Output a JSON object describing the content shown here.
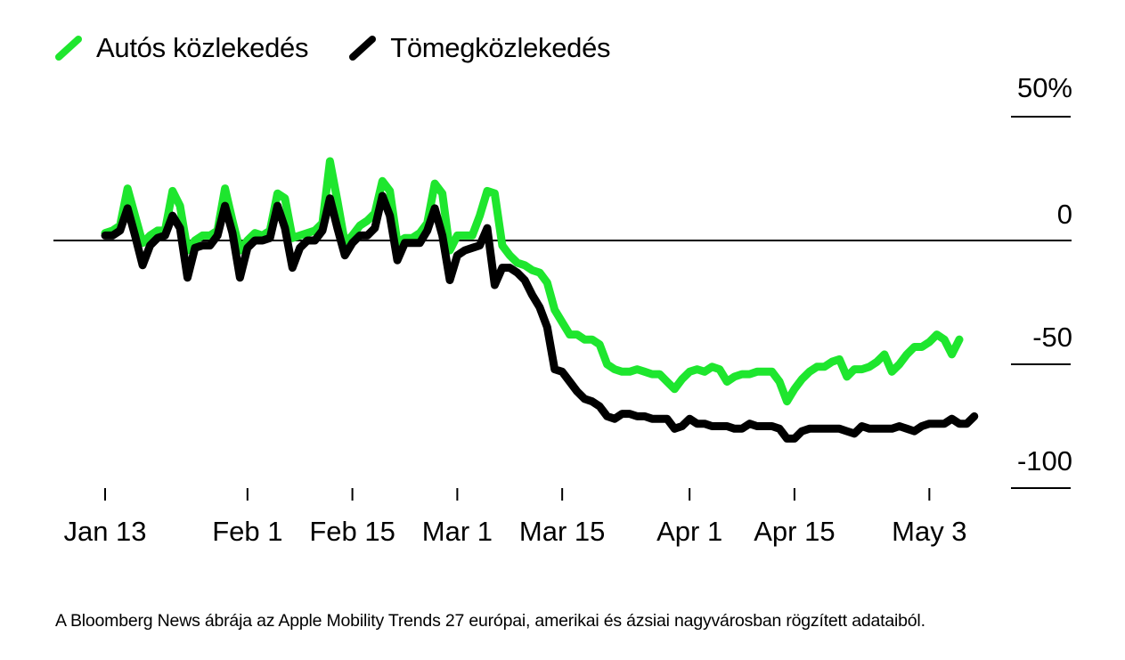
{
  "chart_data": {
    "type": "line",
    "legend_position": "top-left",
    "x_ticks": [
      "Jan 13",
      "Feb 1",
      "Feb 15",
      "Mar 1",
      "Mar 15",
      "Apr 1",
      "Apr 15",
      "May 3"
    ],
    "y_ticks": [
      "50%",
      "0",
      "-50",
      "-100"
    ],
    "ylim": [
      -100,
      50
    ],
    "series": [
      {
        "name": "Autós közlekedés",
        "color": "#1ee62e",
        "values": [
          3,
          4,
          6,
          21,
          10,
          -1,
          2,
          4,
          4,
          20,
          14,
          -4,
          0,
          2,
          2,
          4,
          21,
          8,
          -4,
          0,
          3,
          2,
          4,
          19,
          17,
          1,
          2,
          3,
          4,
          7,
          32,
          16,
          -1,
          2,
          6,
          8,
          11,
          24,
          20,
          -1,
          1,
          1,
          3,
          7,
          23,
          19,
          -4,
          2,
          2,
          2,
          10,
          20,
          19,
          -2,
          -6,
          -9,
          -10,
          -12,
          -13,
          -17,
          -28,
          -33,
          -38,
          -38,
          -40,
          -40,
          -42,
          -50,
          -52,
          -53,
          -53,
          -52,
          -53,
          -54,
          -54,
          -57,
          -60,
          -56,
          -53,
          -52,
          -53,
          -51,
          -52,
          -57,
          -55,
          -54,
          -54,
          -53,
          -53,
          -53,
          -57,
          -65,
          -60,
          -56,
          -53,
          -51,
          -51,
          -49,
          -48,
          -55,
          -52,
          -52,
          -51,
          -49,
          -46,
          -53,
          -50,
          -46,
          -43,
          -43,
          -41,
          -38,
          -40,
          -46,
          -40
        ]
      },
      {
        "name": "Tömegközlekedés",
        "color": "#000000",
        "values": [
          2,
          2,
          4,
          13,
          2,
          -10,
          -2,
          1,
          2,
          10,
          5,
          -15,
          -3,
          -2,
          -2,
          2,
          14,
          3,
          -15,
          -3,
          0,
          0,
          1,
          14,
          5,
          -11,
          -3,
          0,
          0,
          4,
          17,
          5,
          -6,
          -1,
          2,
          2,
          5,
          18,
          10,
          -8,
          -1,
          -1,
          -1,
          4,
          13,
          2,
          -16,
          -6,
          -4,
          -3,
          -2,
          5,
          -18,
          -11,
          -11,
          -13,
          -16,
          -22,
          -27,
          -35,
          -52,
          -53,
          -57,
          -61,
          -64,
          -65,
          -67,
          -71,
          -72,
          -70,
          -70,
          -71,
          -71,
          -72,
          -72,
          -72,
          -76,
          -75,
          -72,
          -74,
          -74,
          -75,
          -75,
          -75,
          -76,
          -76,
          -74,
          -75,
          -75,
          -75,
          -76,
          -80,
          -80,
          -77,
          -76,
          -76,
          -76,
          -76,
          -76,
          -77,
          -78,
          -75,
          -76,
          -76,
          -76,
          -76,
          -75,
          -76,
          -77,
          -75,
          -74,
          -74,
          -74,
          -72,
          -74,
          -74,
          -71
        ]
      }
    ]
  },
  "caption": "A Bloomberg News ábrája az Apple Mobility Trends 27 európai, amerikai és ázsiai nagyvárosban rögzített adataiból."
}
